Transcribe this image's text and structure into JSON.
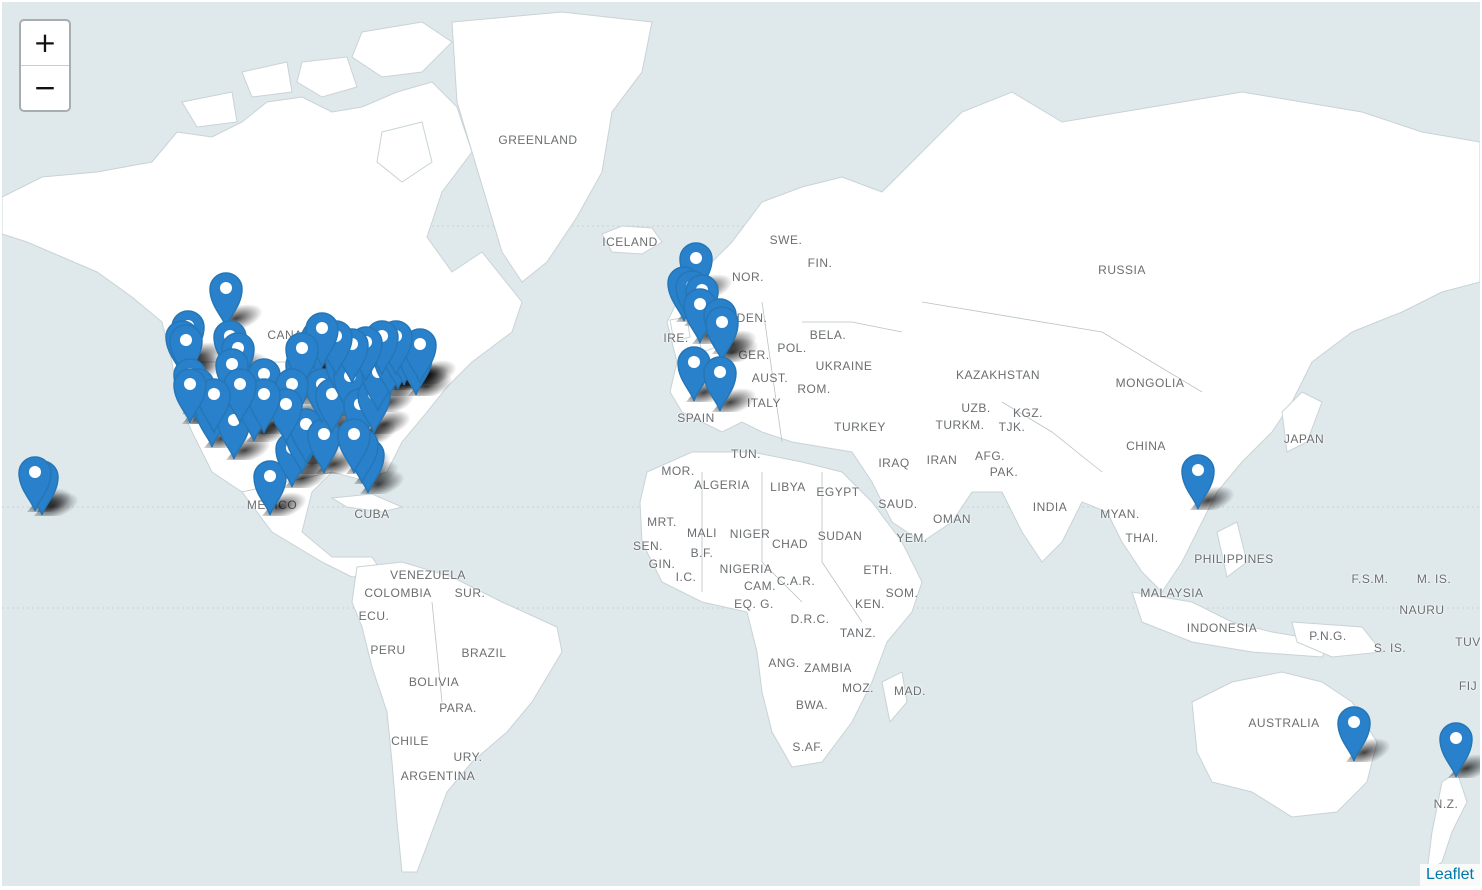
{
  "map": {
    "zoom_in_label": "+",
    "zoom_out_label": "−",
    "attribution": "Leaflet",
    "labels": {
      "greenland": "GREENLAND",
      "iceland": "ICELAND",
      "russia": "RUSSIA",
      "canada": "CANA",
      "mexico": "MEXICO",
      "cuba": "CUBA",
      "venezuela": "VENEZUELA",
      "colombia": "COLOMBIA",
      "suriname": "SUR.",
      "ecuador": "ECU.",
      "peru": "PERU",
      "brazil": "BRAZIL",
      "bolivia": "BOLIVIA",
      "paraguay": "PARA.",
      "chile": "CHILE",
      "uruguay": "URY.",
      "argentina": "ARGENTINA",
      "sweden": "SWE.",
      "norway": "NOR.",
      "finland": "FIN.",
      "denmark": "DEN.",
      "ireland": "IRE.",
      "germany": "GER.",
      "poland": "POL.",
      "belarus": "BELA.",
      "ukraine": "UKRAINE",
      "austria": "AUST.",
      "romania": "ROM.",
      "italy": "ITALY",
      "spain": "SPAIN",
      "turkey": "TURKEY",
      "tunisia": "TUN.",
      "morocco": "MOR.",
      "algeria": "ALGERIA",
      "libya": "LIBYA",
      "egypt": "EGYPT",
      "mauritania": "MRT.",
      "mali": "MALI",
      "niger": "NIGER",
      "chad": "CHAD",
      "sudan": "SUDAN",
      "senegal": "SEN.",
      "burkina": "B.F.",
      "guinea": "GIN.",
      "ivory_coast": "I.C.",
      "nigeria": "NIGERIA",
      "cameroon": "CAM.",
      "car": "C.A.R.",
      "eq_guinea": "EQ. G.",
      "ethiopia": "ETH.",
      "drc": "D.R.C.",
      "kenya": "KEN.",
      "somalia": "SOM.",
      "tanzania": "TANZ.",
      "angola": "ANG.",
      "zambia": "ZAMBIA",
      "mozambique": "MOZ.",
      "madagascar": "MAD.",
      "botswana": "BWA.",
      "south_africa": "S.AF.",
      "iraq": "IRAQ",
      "iran": "IRAN",
      "saudi": "SAUD.",
      "yemen": "YEM.",
      "oman": "OMAN",
      "kazakhstan": "KAZAKHSTAN",
      "uzbekistan": "UZB.",
      "kyrgyzstan": "KGZ.",
      "turkmenistan": "TURKM.",
      "tajikistan": "TJK.",
      "afghanistan": "AFG.",
      "pakistan": "PAK.",
      "india": "INDIA",
      "mongolia": "MONGOLIA",
      "china": "CHINA",
      "japan": "JAPAN",
      "myanmar": "MYAN.",
      "thailand": "THAI.",
      "philippines": "PHILIPPINES",
      "malaysia": "MALAYSIA",
      "indonesia": "INDONESIA",
      "png": "P.N.G.",
      "fsm": "F.S.M.",
      "marshall": "M. IS.",
      "nauru": "NAURU",
      "solomon": "S. IS.",
      "tuvalu": "TUV",
      "fiji": "FIJ",
      "australia": "AUSTRALIA",
      "new_zealand": "N.Z."
    },
    "colors": {
      "water": "#dfe9ec",
      "land": "#ffffff",
      "marker": "#2a81cb",
      "marker_stroke": "#2476b6"
    },
    "marker_icon": "map-pin-icon"
  }
}
